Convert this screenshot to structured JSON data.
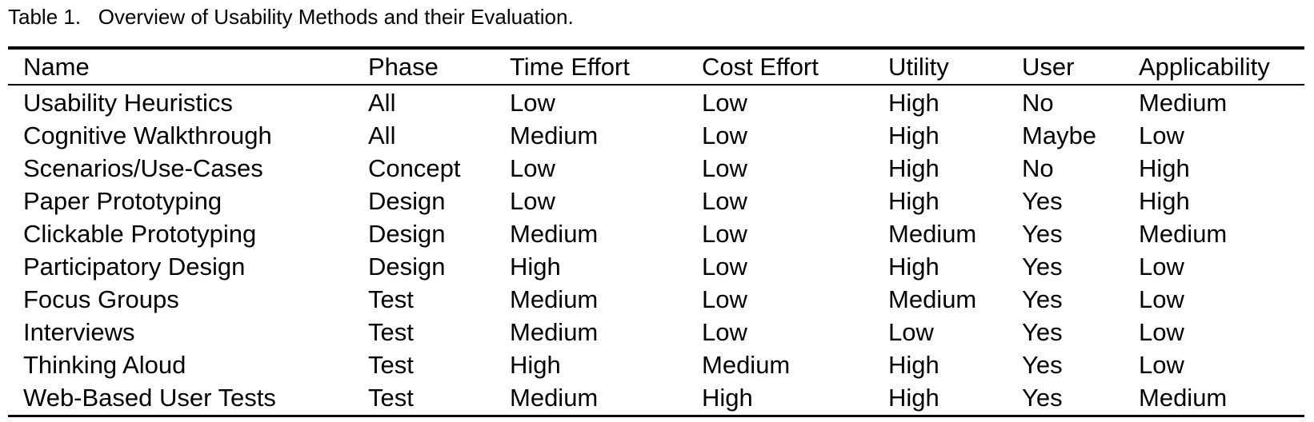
{
  "caption": "Table 1.   Overview of Usability Methods and their Evaluation.",
  "table": {
    "header": [
      "Name",
      "Phase",
      "Time Effort",
      "Cost Effort",
      "Utility",
      "User",
      "Applicability"
    ],
    "rows": [
      [
        "Usability Heuristics",
        "All",
        "Low",
        "Low",
        "High",
        "No",
        "Medium"
      ],
      [
        "Cognitive Walkthrough",
        "All",
        "Medium",
        "Low",
        "High",
        "Maybe",
        "Low"
      ],
      [
        "Scenarios/Use-Cases",
        "Concept",
        "Low",
        "Low",
        "High",
        "No",
        "High"
      ],
      [
        "Paper Prototyping",
        "Design",
        "Low",
        "Low",
        "High",
        "Yes",
        "High"
      ],
      [
        "Clickable Prototyping",
        "Design",
        "Medium",
        "Low",
        "Medium",
        "Yes",
        "Medium"
      ],
      [
        "Participatory Design",
        "Design",
        "High",
        "Low",
        "High",
        "Yes",
        "Low"
      ],
      [
        "Focus Groups",
        "Test",
        "Medium",
        "Low",
        "Medium",
        "Yes",
        "Low"
      ],
      [
        "Interviews",
        "Test",
        "Medium",
        "Low",
        "Low",
        "Yes",
        "Low"
      ],
      [
        "Thinking Aloud",
        "Test",
        "High",
        "Medium",
        "High",
        "Yes",
        "Low"
      ],
      [
        "Web-Based User Tests",
        "Test",
        "Medium",
        "High",
        "High",
        "Yes",
        "Medium"
      ]
    ]
  }
}
